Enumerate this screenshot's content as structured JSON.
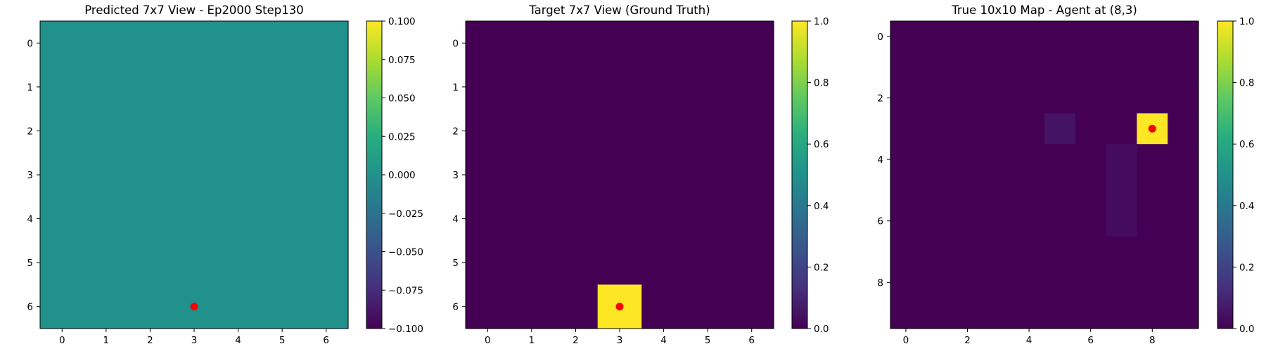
{
  "chart_data": [
    {
      "type": "heatmap",
      "title": "Predicted 7x7 View - Ep2000 Step130",
      "xlabel": "",
      "ylabel": "",
      "grid": false,
      "rows": 7,
      "cols": 7,
      "values": [
        [
          0,
          0,
          0,
          0,
          0,
          0,
          0
        ],
        [
          0,
          0,
          0,
          0,
          0,
          0,
          0
        ],
        [
          0,
          0,
          0,
          0,
          0,
          0,
          0
        ],
        [
          0,
          0,
          0,
          0,
          0,
          0,
          0
        ],
        [
          0,
          0,
          0,
          0,
          0,
          0,
          0
        ],
        [
          0,
          0,
          0,
          0,
          0,
          0,
          0
        ],
        [
          0,
          0,
          0,
          0,
          0,
          0,
          0
        ]
      ],
      "vmin": -0.1,
      "vmax": 0.1,
      "x_ticks": [
        0,
        1,
        2,
        3,
        4,
        5,
        6
      ],
      "y_ticks": [
        0,
        1,
        2,
        3,
        4,
        5,
        6
      ],
      "colorbar_ticks": [
        0.1,
        0.075,
        0.05,
        0.025,
        0.0,
        -0.025,
        -0.05,
        -0.075,
        -0.1
      ],
      "colorbar_tick_labels": [
        "0.100",
        "0.075",
        "0.050",
        "0.025",
        "0.000",
        "−0.025",
        "−0.050",
        "−0.075",
        "−0.100"
      ],
      "marker": {
        "x": 3,
        "y": 6,
        "color": "#ff0000"
      },
      "colormap": "viridis"
    },
    {
      "type": "heatmap",
      "title": "Target 7x7 View (Ground Truth)",
      "xlabel": "",
      "ylabel": "",
      "grid": false,
      "rows": 7,
      "cols": 7,
      "values": [
        [
          0,
          0,
          0,
          0,
          0,
          0,
          0
        ],
        [
          0,
          0,
          0,
          0,
          0,
          0,
          0
        ],
        [
          0,
          0,
          0,
          0,
          0,
          0,
          0
        ],
        [
          0,
          0,
          0,
          0,
          0,
          0,
          0
        ],
        [
          0,
          0,
          0,
          0,
          0,
          0,
          0
        ],
        [
          0,
          0,
          0,
          0,
          0,
          0,
          0
        ],
        [
          0,
          0,
          0,
          1,
          0,
          0,
          0
        ]
      ],
      "vmin": 0,
      "vmax": 1,
      "x_ticks": [
        0,
        1,
        2,
        3,
        4,
        5,
        6
      ],
      "y_ticks": [
        0,
        1,
        2,
        3,
        4,
        5,
        6
      ],
      "colorbar_ticks": [
        1.0,
        0.8,
        0.6,
        0.4,
        0.2,
        0.0
      ],
      "colorbar_tick_labels": [
        "1.0",
        "0.8",
        "0.6",
        "0.4",
        "0.2",
        "0.0"
      ],
      "marker": {
        "x": 3,
        "y": 6,
        "color": "#ff0000"
      },
      "colormap": "viridis"
    },
    {
      "type": "heatmap",
      "title": "True 10x10 Map - Agent at (8,3)",
      "xlabel": "",
      "ylabel": "",
      "grid": false,
      "rows": 10,
      "cols": 10,
      "values": [
        [
          0,
          0,
          0,
          0,
          0,
          0,
          0,
          0,
          0,
          0
        ],
        [
          0,
          0,
          0,
          0,
          0,
          0,
          0,
          0,
          0,
          0
        ],
        [
          0,
          0,
          0,
          0,
          0,
          0,
          0,
          0,
          0,
          0
        ],
        [
          0,
          0,
          0,
          0,
          0,
          0.05,
          0,
          0,
          1,
          0
        ],
        [
          0,
          0,
          0,
          0,
          0,
          0,
          0,
          0.03,
          0,
          0
        ],
        [
          0,
          0,
          0,
          0,
          0,
          0,
          0,
          0.03,
          0,
          0
        ],
        [
          0,
          0,
          0,
          0,
          0,
          0,
          0,
          0.03,
          0,
          0
        ],
        [
          0,
          0,
          0,
          0,
          0,
          0,
          0,
          0,
          0,
          0
        ],
        [
          0,
          0,
          0,
          0,
          0,
          0,
          0,
          0,
          0,
          0
        ],
        [
          0,
          0,
          0,
          0,
          0,
          0,
          0,
          0,
          0,
          0
        ]
      ],
      "vmin": 0,
      "vmax": 1,
      "x_ticks": [
        0,
        2,
        4,
        6,
        8
      ],
      "y_ticks": [
        0,
        2,
        4,
        6,
        8
      ],
      "colorbar_ticks": [
        1.0,
        0.8,
        0.6,
        0.4,
        0.2,
        0.0
      ],
      "colorbar_tick_labels": [
        "1.0",
        "0.8",
        "0.6",
        "0.4",
        "0.2",
        "0.0"
      ],
      "marker": {
        "x": 8,
        "y": 3,
        "color": "#ff0000"
      },
      "colormap": "viridis"
    }
  ]
}
